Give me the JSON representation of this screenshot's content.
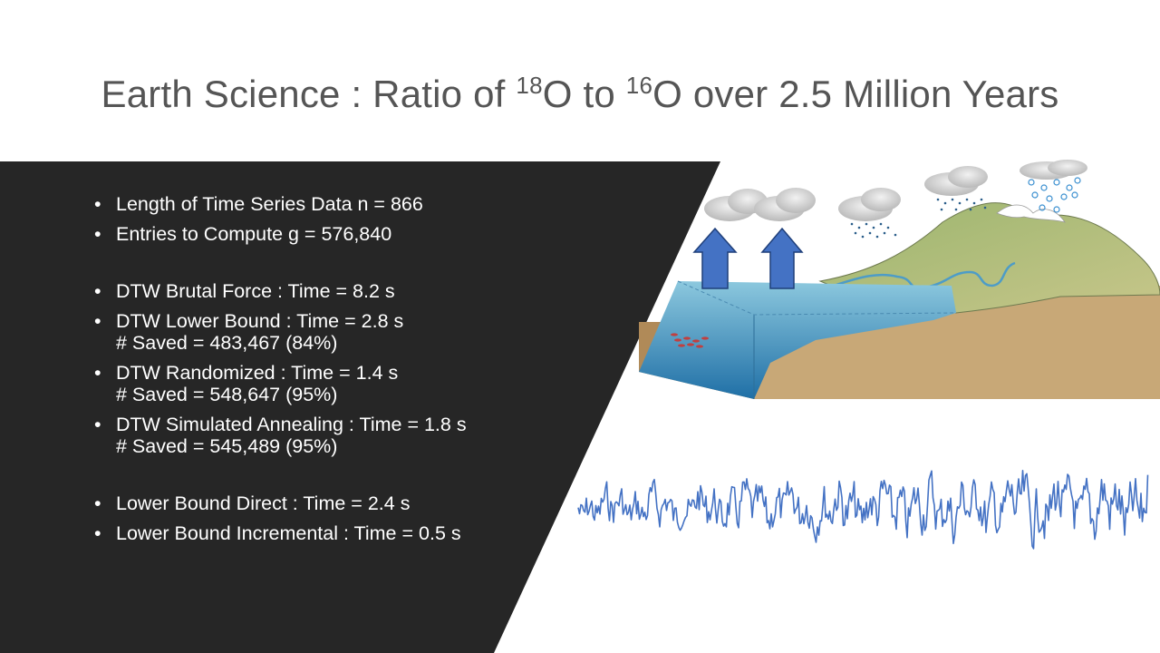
{
  "slide": {
    "title_prefix": "Earth Science : Ratio of ",
    "sup1": "18",
    "mid1": "O to ",
    "sup2": "16",
    "title_suffix": "O over 2.5 Million Years"
  },
  "bullets": [
    {
      "text": "Length of Time Series Data n = 866",
      "sub": ""
    },
    {
      "text": "Entries to Compute g =  576,840",
      "sub": ""
    },
    {
      "text": "DTW Brutal Force : Time = 8.2 s",
      "sub": ""
    },
    {
      "text": "DTW Lower Bound : Time = 2.8 s",
      "sub": "# Saved = 483,467 (84%)"
    },
    {
      "text": "DTW Randomized : Time  = 1.4 s",
      "sub": "# Saved = 548,647 (95%)"
    },
    {
      "text": "DTW Simulated Annealing : Time  = 1.8 s",
      "sub": "# Saved = 545,489 (95%)"
    },
    {
      "text": "Lower Bound Direct : Time = 2.4 s",
      "sub": ""
    },
    {
      "text": "Lower Bound Incremental : Time = 0.5 s",
      "sub": ""
    }
  ],
  "colors": {
    "panel": "#262626",
    "series_line": "#4472c4",
    "arrow_fill": "#4472c4",
    "water": "#5aaac8",
    "land": "#c8a877",
    "hill": "#a9b97a"
  },
  "icons": {
    "water_cycle": "water-cycle-illustration",
    "evaporation": "up-arrow-icon"
  }
}
